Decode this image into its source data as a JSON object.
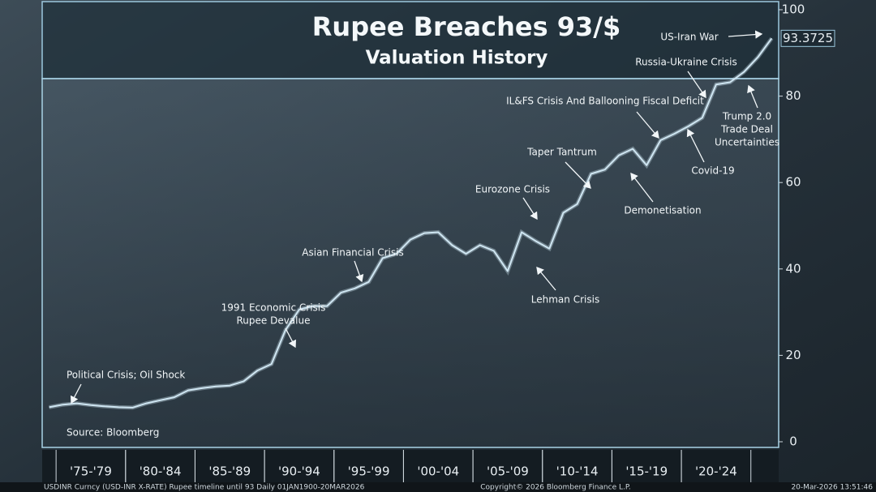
{
  "chart_data": {
    "type": "line",
    "title": "Rupee Breaches 93/$",
    "subtitle": "Valuation History",
    "source": "Source: Bloomberg",
    "footer": {
      "left": "USDINR Curncy (USD-INR X-RATE) Rupee timeline until 93 Daily 01JAN1900-20MAR2026",
      "center": "Copyright© 2026 Bloomberg Finance L.P.",
      "right": "20-Mar-2026 13:51:46"
    },
    "categories": [
      null,
      null,
      null,
      "'75-'79",
      null,
      null,
      null,
      null,
      "'80-'84",
      null,
      null,
      null,
      null,
      "'85-'89",
      null,
      null,
      null,
      null,
      "'90-'94",
      null,
      null,
      null,
      null,
      "'95-'99",
      null,
      null,
      null,
      null,
      "'00-'04",
      null,
      null,
      null,
      null,
      "'05-'09",
      null,
      null,
      null,
      null,
      "'10-'14",
      null,
      null,
      null,
      null,
      "'15-'19",
      null,
      null,
      null,
      null,
      "'20-'24",
      null,
      null,
      null,
      null
    ],
    "series": [
      {
        "name": "USDINR",
        "color": "#cfe6f2",
        "values": [
          8.0,
          8.6,
          8.9,
          8.5,
          8.2,
          8.0,
          7.9,
          8.9,
          9.6,
          10.3,
          11.9,
          12.4,
          12.8,
          13.0,
          14.0,
          16.5,
          18.0,
          25.8,
          30.6,
          31.4,
          31.4,
          34.5,
          35.5,
          37.0,
          42.5,
          43.5,
          46.8,
          48.3,
          48.5,
          45.5,
          43.5,
          45.5,
          44.2,
          39.5,
          48.5,
          46.5,
          44.7,
          53.0,
          55.0,
          62.0,
          63.0,
          66.3,
          67.8,
          64.0,
          69.8,
          71.3,
          73.0,
          75.0,
          82.7,
          83.2,
          85.6,
          89.0,
          93.3725
        ]
      }
    ],
    "ylim": [
      0,
      100
    ],
    "yticks": [
      0,
      20,
      40,
      60,
      80,
      100
    ],
    "annotations": [
      {
        "lines": [
          "Political Crisis; Oil Shock"
        ]
      },
      {
        "lines": [
          "1991 Economic Crisis",
          "Rupee Devalue"
        ]
      },
      {
        "lines": [
          "Asian Financial Crisis"
        ]
      },
      {
        "lines": [
          "Eurozone Crisis"
        ]
      },
      {
        "lines": [
          "Lehman Crisis"
        ]
      },
      {
        "lines": [
          "Taper Tantrum"
        ]
      },
      {
        "lines": [
          "Demonetisation"
        ]
      },
      {
        "lines": [
          "IL&FS Crisis And Ballooning Fiscal Deficit"
        ]
      },
      {
        "lines": [
          "Covid-19"
        ]
      },
      {
        "lines": [
          "Russia-Ukraine Crisis"
        ]
      },
      {
        "lines": [
          "Trump 2.0",
          "Trade Deal",
          "Uncertainties"
        ]
      },
      {
        "lines": [
          "US-Iran War"
        ]
      }
    ]
  }
}
